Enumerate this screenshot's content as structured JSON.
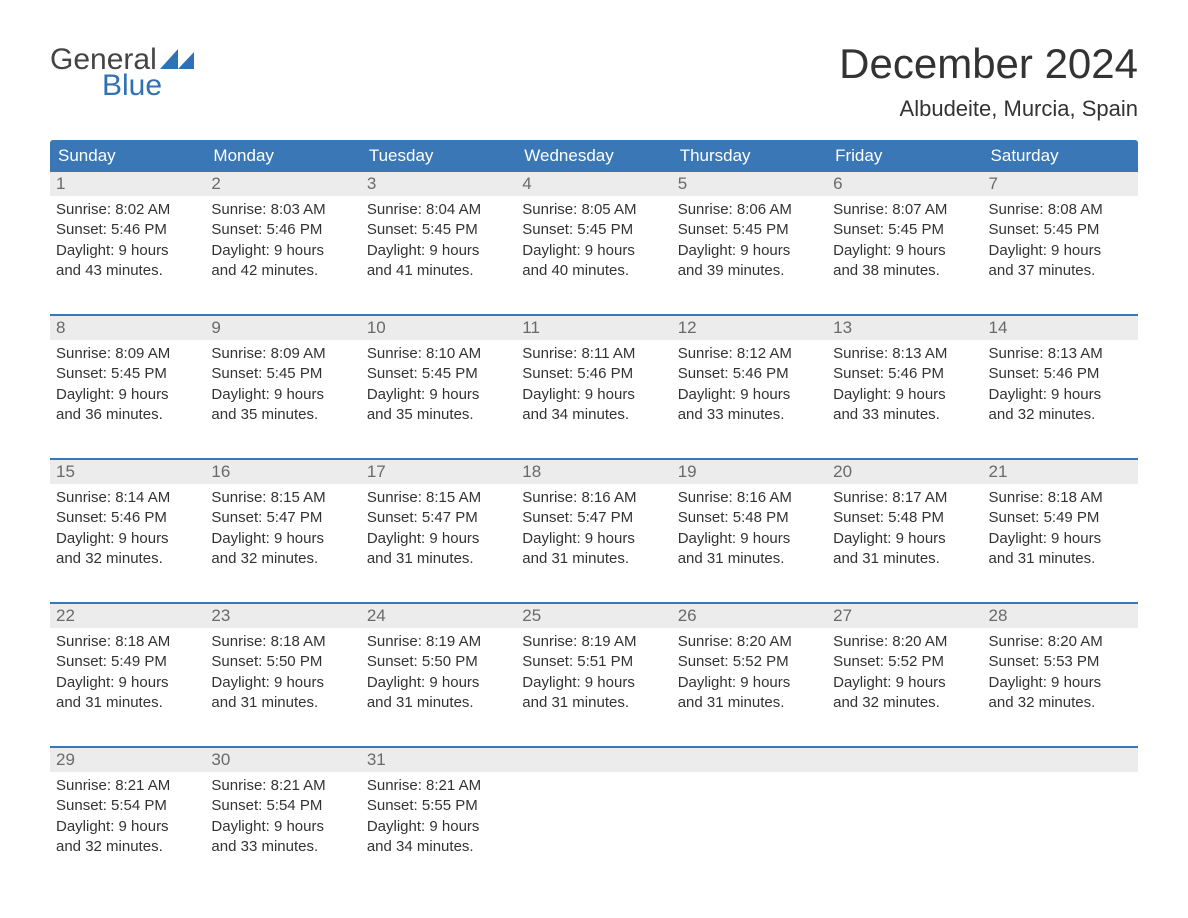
{
  "brand": {
    "word1": "General",
    "word2": "Blue",
    "word1_color": "#444444",
    "word2_color": "#2f71b3",
    "triangle_color": "#2f71b3"
  },
  "title": "December 2024",
  "location": "Albudeite, Murcia, Spain",
  "colors": {
    "header_bg": "#3a77b6",
    "header_text": "#ffffff",
    "daynum_bg": "#ececec",
    "daynum_text": "#6a6a6a",
    "body_text": "#333333",
    "week_border": "#3a77b6",
    "page_bg": "#ffffff"
  },
  "fonts": {
    "title_size_pt": 42,
    "location_size_pt": 22,
    "header_size_pt": 17,
    "daynum_size_pt": 17,
    "body_size_pt": 15
  },
  "day_names": [
    "Sunday",
    "Monday",
    "Tuesday",
    "Wednesday",
    "Thursday",
    "Friday",
    "Saturday"
  ],
  "weeks": [
    [
      {
        "n": "1",
        "sunrise": "Sunrise: 8:02 AM",
        "sunset": "Sunset: 5:46 PM",
        "d1": "Daylight: 9 hours",
        "d2": "and 43 minutes."
      },
      {
        "n": "2",
        "sunrise": "Sunrise: 8:03 AM",
        "sunset": "Sunset: 5:46 PM",
        "d1": "Daylight: 9 hours",
        "d2": "and 42 minutes."
      },
      {
        "n": "3",
        "sunrise": "Sunrise: 8:04 AM",
        "sunset": "Sunset: 5:45 PM",
        "d1": "Daylight: 9 hours",
        "d2": "and 41 minutes."
      },
      {
        "n": "4",
        "sunrise": "Sunrise: 8:05 AM",
        "sunset": "Sunset: 5:45 PM",
        "d1": "Daylight: 9 hours",
        "d2": "and 40 minutes."
      },
      {
        "n": "5",
        "sunrise": "Sunrise: 8:06 AM",
        "sunset": "Sunset: 5:45 PM",
        "d1": "Daylight: 9 hours",
        "d2": "and 39 minutes."
      },
      {
        "n": "6",
        "sunrise": "Sunrise: 8:07 AM",
        "sunset": "Sunset: 5:45 PM",
        "d1": "Daylight: 9 hours",
        "d2": "and 38 minutes."
      },
      {
        "n": "7",
        "sunrise": "Sunrise: 8:08 AM",
        "sunset": "Sunset: 5:45 PM",
        "d1": "Daylight: 9 hours",
        "d2": "and 37 minutes."
      }
    ],
    [
      {
        "n": "8",
        "sunrise": "Sunrise: 8:09 AM",
        "sunset": "Sunset: 5:45 PM",
        "d1": "Daylight: 9 hours",
        "d2": "and 36 minutes."
      },
      {
        "n": "9",
        "sunrise": "Sunrise: 8:09 AM",
        "sunset": "Sunset: 5:45 PM",
        "d1": "Daylight: 9 hours",
        "d2": "and 35 minutes."
      },
      {
        "n": "10",
        "sunrise": "Sunrise: 8:10 AM",
        "sunset": "Sunset: 5:45 PM",
        "d1": "Daylight: 9 hours",
        "d2": "and 35 minutes."
      },
      {
        "n": "11",
        "sunrise": "Sunrise: 8:11 AM",
        "sunset": "Sunset: 5:46 PM",
        "d1": "Daylight: 9 hours",
        "d2": "and 34 minutes."
      },
      {
        "n": "12",
        "sunrise": "Sunrise: 8:12 AM",
        "sunset": "Sunset: 5:46 PM",
        "d1": "Daylight: 9 hours",
        "d2": "and 33 minutes."
      },
      {
        "n": "13",
        "sunrise": "Sunrise: 8:13 AM",
        "sunset": "Sunset: 5:46 PM",
        "d1": "Daylight: 9 hours",
        "d2": "and 33 minutes."
      },
      {
        "n": "14",
        "sunrise": "Sunrise: 8:13 AM",
        "sunset": "Sunset: 5:46 PM",
        "d1": "Daylight: 9 hours",
        "d2": "and 32 minutes."
      }
    ],
    [
      {
        "n": "15",
        "sunrise": "Sunrise: 8:14 AM",
        "sunset": "Sunset: 5:46 PM",
        "d1": "Daylight: 9 hours",
        "d2": "and 32 minutes."
      },
      {
        "n": "16",
        "sunrise": "Sunrise: 8:15 AM",
        "sunset": "Sunset: 5:47 PM",
        "d1": "Daylight: 9 hours",
        "d2": "and 32 minutes."
      },
      {
        "n": "17",
        "sunrise": "Sunrise: 8:15 AM",
        "sunset": "Sunset: 5:47 PM",
        "d1": "Daylight: 9 hours",
        "d2": "and 31 minutes."
      },
      {
        "n": "18",
        "sunrise": "Sunrise: 8:16 AM",
        "sunset": "Sunset: 5:47 PM",
        "d1": "Daylight: 9 hours",
        "d2": "and 31 minutes."
      },
      {
        "n": "19",
        "sunrise": "Sunrise: 8:16 AM",
        "sunset": "Sunset: 5:48 PM",
        "d1": "Daylight: 9 hours",
        "d2": "and 31 minutes."
      },
      {
        "n": "20",
        "sunrise": "Sunrise: 8:17 AM",
        "sunset": "Sunset: 5:48 PM",
        "d1": "Daylight: 9 hours",
        "d2": "and 31 minutes."
      },
      {
        "n": "21",
        "sunrise": "Sunrise: 8:18 AM",
        "sunset": "Sunset: 5:49 PM",
        "d1": "Daylight: 9 hours",
        "d2": "and 31 minutes."
      }
    ],
    [
      {
        "n": "22",
        "sunrise": "Sunrise: 8:18 AM",
        "sunset": "Sunset: 5:49 PM",
        "d1": "Daylight: 9 hours",
        "d2": "and 31 minutes."
      },
      {
        "n": "23",
        "sunrise": "Sunrise: 8:18 AM",
        "sunset": "Sunset: 5:50 PM",
        "d1": "Daylight: 9 hours",
        "d2": "and 31 minutes."
      },
      {
        "n": "24",
        "sunrise": "Sunrise: 8:19 AM",
        "sunset": "Sunset: 5:50 PM",
        "d1": "Daylight: 9 hours",
        "d2": "and 31 minutes."
      },
      {
        "n": "25",
        "sunrise": "Sunrise: 8:19 AM",
        "sunset": "Sunset: 5:51 PM",
        "d1": "Daylight: 9 hours",
        "d2": "and 31 minutes."
      },
      {
        "n": "26",
        "sunrise": "Sunrise: 8:20 AM",
        "sunset": "Sunset: 5:52 PM",
        "d1": "Daylight: 9 hours",
        "d2": "and 31 minutes."
      },
      {
        "n": "27",
        "sunrise": "Sunrise: 8:20 AM",
        "sunset": "Sunset: 5:52 PM",
        "d1": "Daylight: 9 hours",
        "d2": "and 32 minutes."
      },
      {
        "n": "28",
        "sunrise": "Sunrise: 8:20 AM",
        "sunset": "Sunset: 5:53 PM",
        "d1": "Daylight: 9 hours",
        "d2": "and 32 minutes."
      }
    ],
    [
      {
        "n": "29",
        "sunrise": "Sunrise: 8:21 AM",
        "sunset": "Sunset: 5:54 PM",
        "d1": "Daylight: 9 hours",
        "d2": "and 32 minutes."
      },
      {
        "n": "30",
        "sunrise": "Sunrise: 8:21 AM",
        "sunset": "Sunset: 5:54 PM",
        "d1": "Daylight: 9 hours",
        "d2": "and 33 minutes."
      },
      {
        "n": "31",
        "sunrise": "Sunrise: 8:21 AM",
        "sunset": "Sunset: 5:55 PM",
        "d1": "Daylight: 9 hours",
        "d2": "and 34 minutes."
      },
      {
        "empty": true
      },
      {
        "empty": true
      },
      {
        "empty": true
      },
      {
        "empty": true
      }
    ]
  ]
}
